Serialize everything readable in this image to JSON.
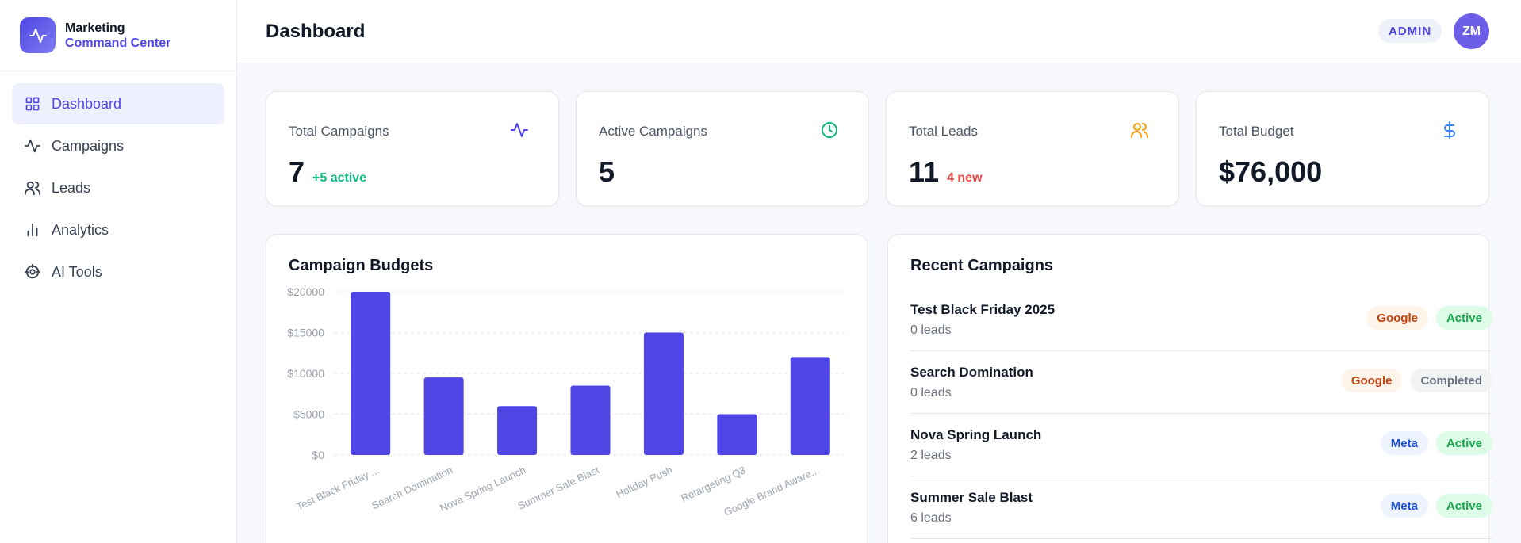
{
  "brand": {
    "title": "Marketing",
    "subtitle": "Command Center"
  },
  "sidebar": {
    "items": [
      {
        "label": "Dashboard",
        "icon": "grid-icon",
        "active": true
      },
      {
        "label": "Campaigns",
        "icon": "activity-icon",
        "active": false
      },
      {
        "label": "Leads",
        "icon": "users-icon",
        "active": false
      },
      {
        "label": "Analytics",
        "icon": "bar-chart-icon",
        "active": false
      },
      {
        "label": "AI Tools",
        "icon": "bot-icon",
        "active": false
      }
    ]
  },
  "header": {
    "title": "Dashboard",
    "role_badge": "ADMIN",
    "avatar_initials": "ZM"
  },
  "stats": [
    {
      "label": "Total Campaigns",
      "value": "7",
      "note": "+5 active",
      "note_color": "#10b981",
      "icon": "activity-icon",
      "icon_color": "#4f46e5"
    },
    {
      "label": "Active Campaigns",
      "value": "5",
      "note": "",
      "note_color": "",
      "icon": "clock-icon",
      "icon_color": "#10b981"
    },
    {
      "label": "Total Leads",
      "value": "11",
      "note": "4 new",
      "note_color": "#ef4444",
      "icon": "users-icon",
      "icon_color": "#f59e0b"
    },
    {
      "label": "Total Budget",
      "value": "$76,000",
      "note": "",
      "note_color": "",
      "icon": "dollar-icon",
      "icon_color": "#3b82f6"
    }
  ],
  "budgets_panel": {
    "title": "Campaign Budgets"
  },
  "chart_data": {
    "type": "bar",
    "title": "Campaign Budgets",
    "categories": [
      "Test Black Friday ...",
      "Search Domination",
      "Nova Spring Launch",
      "Summer Sale Blast",
      "Holiday Push",
      "Retargeting Q3",
      "Google Brand Aware..."
    ],
    "values": [
      20000,
      9500,
      6000,
      8500,
      15000,
      5000,
      12000
    ],
    "y_ticks": [
      "$0",
      "$5000",
      "$10000",
      "$15000",
      "$20000"
    ],
    "ylim": [
      0,
      20000
    ],
    "bar_color": "#4f46e5",
    "grid": true
  },
  "recent_panel": {
    "title": "Recent Campaigns",
    "items": [
      {
        "name": "Test Black Friday 2025",
        "sub": "0 leads",
        "platform": "Google",
        "status": "Active"
      },
      {
        "name": "Search Domination",
        "sub": "0 leads",
        "platform": "Google",
        "status": "Completed"
      },
      {
        "name": "Nova Spring Launch",
        "sub": "2 leads",
        "platform": "Meta",
        "status": "Active"
      },
      {
        "name": "Summer Sale Blast",
        "sub": "6 leads",
        "platform": "Meta",
        "status": "Active"
      }
    ]
  },
  "colors": {
    "accent": "#4f46e5",
    "google_bg": "#fff4ea",
    "google_fg": "#c2410c",
    "meta_bg": "#eef4ff",
    "meta_fg": "#1d4ed8",
    "active_bg": "#dcfce7",
    "active_fg": "#16a34a",
    "completed_bg": "#f1f3f5",
    "completed_fg": "#6b7280"
  }
}
